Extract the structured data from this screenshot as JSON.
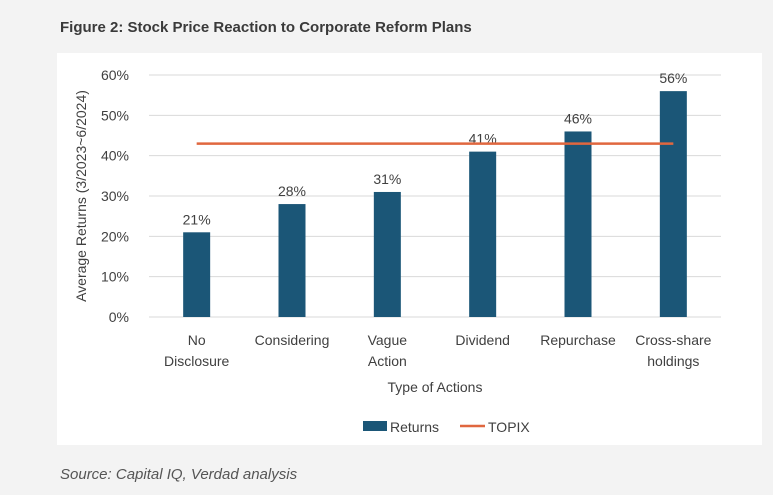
{
  "figure_title": "Figure 2: Stock Price Reaction to Corporate Reform Plans",
  "source_note": "Source: Capital IQ, Verdad analysis",
  "colors": {
    "bar": "#1b5677",
    "line": "#e0673f",
    "grid": "#d9d9d9",
    "text": "#404040"
  },
  "chart_data": {
    "type": "bar",
    "categories": [
      [
        "No",
        "Disclosure"
      ],
      [
        "Considering"
      ],
      [
        "Vague",
        "Action"
      ],
      [
        "Dividend"
      ],
      [
        "Repurchase"
      ],
      [
        "Cross-share",
        "holdings"
      ]
    ],
    "series": [
      {
        "name": "Returns",
        "values": [
          21,
          28,
          31,
          41,
          46,
          56
        ],
        "labels": [
          "21%",
          "28%",
          "31%",
          "41%",
          "46%",
          "56%"
        ]
      }
    ],
    "reference_line": {
      "name": "TOPIX",
      "value": 43
    },
    "xlabel": "Type of Actions",
    "ylabel": "Average Returns (3/2023~6/2024)",
    "ylim": [
      0,
      60
    ],
    "yticks": [
      0,
      10,
      20,
      30,
      40,
      50,
      60
    ],
    "ytick_labels": [
      "0%",
      "10%",
      "20%",
      "30%",
      "40%",
      "50%",
      "60%"
    ],
    "grid": true,
    "legend_position": "bottom",
    "legend": [
      {
        "name": "Returns",
        "kind": "bar"
      },
      {
        "name": "TOPIX",
        "kind": "line"
      }
    ]
  }
}
